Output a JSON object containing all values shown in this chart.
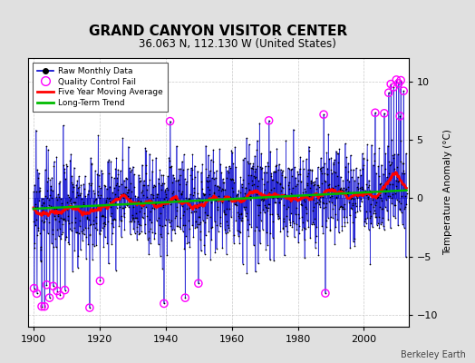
{
  "title": "GRAND CANYON VISITOR CENTER",
  "subtitle": "36.063 N, 112.130 W (United States)",
  "ylabel": "Temperature Anomaly (°C)",
  "attribution": "Berkeley Earth",
  "xlim": [
    1898.5,
    2013.5
  ],
  "ylim": [
    -11,
    12
  ],
  "yticks": [
    -10,
    -5,
    0,
    5,
    10
  ],
  "xticks": [
    1900,
    1920,
    1940,
    1960,
    1980,
    2000
  ],
  "bg_color": "#e0e0e0",
  "plot_bg_color": "#ffffff",
  "raw_line_color": "#0000cc",
  "raw_marker_color": "#000000",
  "qc_fail_color": "#ff00ff",
  "moving_avg_color": "#ff0000",
  "trend_color": "#00bb00",
  "seed": 12,
  "start_year": 1900,
  "end_year": 2012,
  "noise_std": 2.2,
  "qc_threshold": 6.5,
  "moving_avg_window": 60
}
